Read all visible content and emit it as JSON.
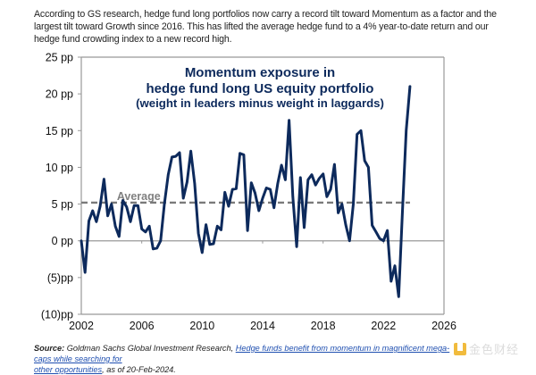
{
  "intro_text": "According to GS research, hedge fund long portfolios now carry a record tilt toward Momentum as a factor and the largest tilt toward Growth since 2016. This has lifted the average hedge fund to a 4% year-to-date return and our hedge fund crowding index to a new record high.",
  "chart_data": {
    "type": "line",
    "title": "Momentum exposure in hedge fund long US equity portfolio (weight in leaders minus weight in laggards)",
    "title_lines": [
      "Momentum exposure in",
      "hedge fund long US equity portfolio",
      "(weight in leaders minus weight in laggards)"
    ],
    "xlabel": "",
    "ylabel": "",
    "xlim": [
      2002,
      2026
    ],
    "ylim": [
      -10,
      25
    ],
    "x_ticks": [
      2002,
      2006,
      2010,
      2014,
      2018,
      2022,
      2026
    ],
    "x_tick_labels": [
      "2002",
      "2006",
      "2010",
      "2014",
      "2018",
      "2022",
      "2026"
    ],
    "y_ticks": [
      -10,
      -5,
      0,
      5,
      10,
      15,
      20,
      25
    ],
    "y_tick_labels": [
      "(10)pp",
      "(5)pp",
      "0 pp",
      "5 pp",
      "10 pp",
      "15 pp",
      "20 pp",
      "25 pp"
    ],
    "grid": false,
    "average": {
      "label": "Average",
      "value": 5.2
    },
    "series": [
      {
        "name": "Momentum exposure",
        "color": "#0d2a5c",
        "x": [
          2002.0,
          2002.25,
          2002.5,
          2002.75,
          2003.0,
          2003.25,
          2003.5,
          2003.75,
          2004.0,
          2004.25,
          2004.5,
          2004.75,
          2005.0,
          2005.25,
          2005.5,
          2005.75,
          2006.0,
          2006.25,
          2006.5,
          2006.75,
          2007.0,
          2007.25,
          2007.5,
          2007.75,
          2008.0,
          2008.25,
          2008.5,
          2008.75,
          2009.0,
          2009.25,
          2009.5,
          2009.75,
          2010.0,
          2010.25,
          2010.5,
          2010.75,
          2011.0,
          2011.25,
          2011.5,
          2011.75,
          2012.0,
          2012.25,
          2012.5,
          2012.75,
          2013.0,
          2013.25,
          2013.5,
          2013.75,
          2014.0,
          2014.25,
          2014.5,
          2014.75,
          2015.0,
          2015.25,
          2015.5,
          2015.75,
          2016.0,
          2016.25,
          2016.5,
          2016.75,
          2017.0,
          2017.25,
          2017.5,
          2017.75,
          2018.0,
          2018.25,
          2018.5,
          2018.75,
          2019.0,
          2019.25,
          2019.5,
          2019.75,
          2020.0,
          2020.25,
          2020.5,
          2020.75,
          2021.0,
          2021.25,
          2021.5,
          2021.75,
          2022.0,
          2022.25,
          2022.5,
          2022.75,
          2023.0,
          2023.25,
          2023.5,
          2023.75
        ],
        "y": [
          0.0,
          -4.3,
          2.7,
          4.1,
          2.6,
          4.7,
          8.4,
          3.4,
          5.0,
          2.0,
          0.6,
          5.5,
          4.6,
          2.6,
          4.8,
          4.8,
          1.6,
          1.2,
          2.0,
          -1.1,
          -1.0,
          0.0,
          5.0,
          9.0,
          11.4,
          11.5,
          12.0,
          5.8,
          8.0,
          12.2,
          7.8,
          1.0,
          -1.6,
          2.2,
          -0.5,
          -0.4,
          2.0,
          1.5,
          6.6,
          4.7,
          7.0,
          7.1,
          11.9,
          11.7,
          1.4,
          7.9,
          6.5,
          4.1,
          5.8,
          7.2,
          7.0,
          4.5,
          7.8,
          10.3,
          8.3,
          16.4,
          6.0,
          -0.8,
          8.6,
          1.8,
          8.3,
          9.0,
          7.6,
          8.5,
          9.1,
          6.0,
          7.0,
          10.4,
          3.8,
          5.0,
          2.2,
          0.0,
          5.0,
          14.5,
          15.0,
          10.9,
          10.0,
          2.1,
          1.2,
          0.3,
          0.0,
          1.4,
          -5.5,
          -3.4,
          -7.6,
          4.0,
          15.0,
          21.0
        ]
      }
    ]
  },
  "source": {
    "label": "Source:",
    "text_before": " Goldman Sachs Global Investment Research, ",
    "link_text": "Hedge funds benefit from momentum in magnificent mega-caps while searching for other opportunities",
    "link_line1": "Hedge funds benefit from momentum in magnificent mega-caps while searching for",
    "link_line2": "other opportunities",
    "text_after": ", as of 20-Feb-2024."
  },
  "watermark": {
    "text": "金色财经"
  }
}
